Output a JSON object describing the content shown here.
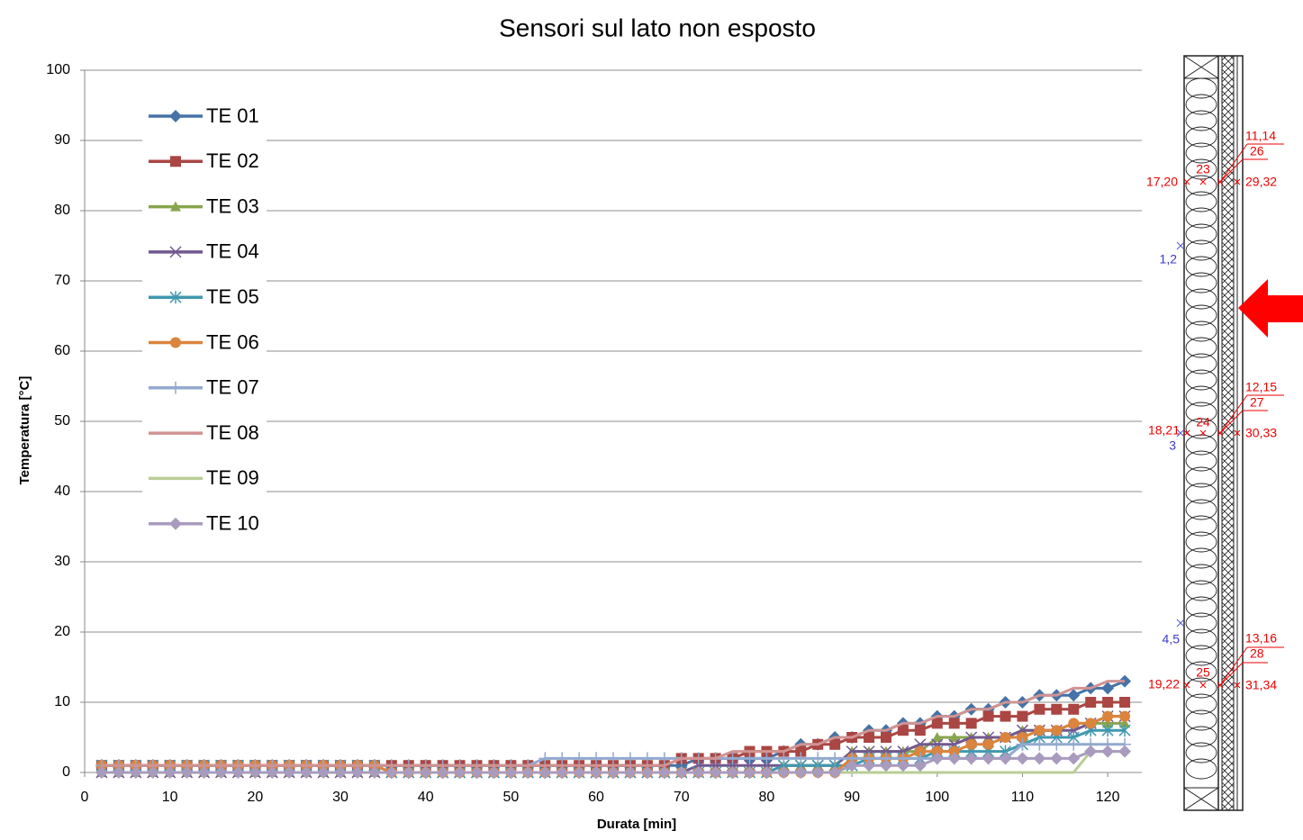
{
  "chart_data": {
    "type": "line",
    "title": "Sensori sul lato non esposto",
    "xlabel": "Durata  [min]",
    "ylabel": "Temperatura  [°C]",
    "xlim": [
      0,
      124
    ],
    "ylim": [
      0,
      100
    ],
    "xticks": [
      0,
      10,
      20,
      30,
      40,
      50,
      60,
      70,
      80,
      90,
      100,
      110,
      120
    ],
    "yticks": [
      0,
      10,
      20,
      30,
      40,
      50,
      60,
      70,
      80,
      90,
      100
    ],
    "grid": true,
    "legend": "upper left",
    "x": [
      2,
      4,
      6,
      8,
      10,
      12,
      14,
      16,
      18,
      20,
      22,
      24,
      26,
      28,
      30,
      32,
      34,
      36,
      38,
      40,
      42,
      44,
      46,
      48,
      50,
      52,
      54,
      56,
      58,
      60,
      62,
      64,
      66,
      68,
      70,
      72,
      74,
      76,
      78,
      80,
      82,
      84,
      86,
      88,
      90,
      92,
      94,
      96,
      98,
      100,
      102,
      104,
      106,
      108,
      110,
      112,
      114,
      116,
      118,
      120,
      122
    ],
    "series": [
      {
        "name": "TE 01",
        "color": "#4572a7",
        "marker": "diamond",
        "values": [
          1,
          1,
          1,
          1,
          1,
          1,
          1,
          1,
          1,
          1,
          1,
          1,
          1,
          1,
          1,
          1,
          1,
          1,
          1,
          1,
          1,
          1,
          1,
          1,
          1,
          1,
          1,
          1,
          1,
          1,
          1,
          1,
          1,
          1,
          1,
          2,
          2,
          2,
          2,
          2,
          3,
          4,
          4,
          5,
          5,
          6,
          6,
          7,
          7,
          8,
          8,
          9,
          9,
          10,
          10,
          11,
          11,
          11,
          12,
          12,
          13
        ]
      },
      {
        "name": "TE 02",
        "color": "#aa4643",
        "marker": "square",
        "values": [
          1,
          1,
          1,
          1,
          1,
          1,
          1,
          1,
          1,
          1,
          1,
          1,
          1,
          1,
          1,
          1,
          1,
          1,
          1,
          1,
          1,
          1,
          1,
          1,
          1,
          1,
          1,
          1,
          1,
          1,
          1,
          1,
          1,
          1,
          2,
          2,
          2,
          2,
          3,
          3,
          3,
          3,
          4,
          4,
          5,
          5,
          5,
          6,
          6,
          7,
          7,
          7,
          8,
          8,
          8,
          9,
          9,
          9,
          10,
          10,
          10
        ]
      },
      {
        "name": "TE 03",
        "color": "#89a54e",
        "marker": "triangle",
        "values": [
          0,
          0,
          0,
          0,
          0,
          0,
          0,
          0,
          0,
          0,
          0,
          0,
          0,
          0,
          0,
          0,
          0,
          0,
          0,
          0,
          0,
          0,
          0,
          0,
          0,
          0,
          0,
          0,
          0,
          0,
          0,
          0,
          0,
          0,
          0,
          0,
          0,
          0,
          0,
          0,
          1,
          1,
          1,
          1,
          3,
          3,
          3,
          3,
          3,
          5,
          5,
          5,
          5,
          5,
          6,
          6,
          6,
          7,
          7,
          7,
          7
        ]
      },
      {
        "name": "TE 04",
        "color": "#71588f",
        "marker": "x",
        "values": [
          0,
          0,
          0,
          0,
          0,
          0,
          0,
          0,
          0,
          0,
          0,
          0,
          0,
          0,
          0,
          0,
          0,
          0,
          0,
          0,
          0,
          0,
          0,
          0,
          0,
          0,
          0,
          0,
          0,
          0,
          0,
          0,
          0,
          0,
          0,
          1,
          1,
          1,
          1,
          1,
          1,
          1,
          1,
          1,
          3,
          3,
          3,
          3,
          4,
          4,
          4,
          5,
          5,
          5,
          6,
          6,
          6,
          6,
          7,
          8,
          8
        ]
      },
      {
        "name": "TE 05",
        "color": "#4198af",
        "marker": "star",
        "values": [
          1,
          1,
          1,
          1,
          1,
          1,
          1,
          1,
          1,
          1,
          1,
          1,
          1,
          1,
          1,
          1,
          1,
          0,
          0,
          0,
          0,
          0,
          0,
          0,
          0,
          0,
          0,
          0,
          0,
          0,
          0,
          0,
          0,
          0,
          0,
          0,
          0,
          0,
          0,
          0,
          1,
          1,
          1,
          1,
          1,
          2,
          2,
          2,
          2,
          3,
          3,
          3,
          3,
          3,
          4,
          5,
          5,
          5,
          6,
          6,
          6
        ]
      },
      {
        "name": "TE 06",
        "color": "#db843d",
        "marker": "circle",
        "values": [
          1,
          1,
          1,
          1,
          1,
          1,
          1,
          1,
          1,
          1,
          1,
          1,
          1,
          1,
          1,
          1,
          1,
          0,
          0,
          0,
          0,
          0,
          0,
          0,
          0,
          0,
          0,
          0,
          0,
          0,
          0,
          0,
          0,
          0,
          0,
          0,
          0,
          0,
          0,
          0,
          0,
          0,
          0,
          0,
          2,
          2,
          2,
          2,
          3,
          3,
          3,
          4,
          4,
          5,
          5,
          6,
          6,
          7,
          7,
          8,
          8
        ]
      },
      {
        "name": "TE 07",
        "color": "#93a9cf",
        "marker": "plus",
        "values": [
          1,
          1,
          1,
          1,
          1,
          1,
          1,
          1,
          1,
          1,
          1,
          1,
          1,
          1,
          1,
          1,
          1,
          1,
          1,
          1,
          1,
          1,
          1,
          1,
          1,
          1,
          2,
          2,
          2,
          2,
          2,
          2,
          2,
          2,
          2,
          2,
          2,
          2,
          2,
          2,
          2,
          2,
          2,
          2,
          2,
          2,
          2,
          2,
          2,
          2,
          2,
          2,
          2,
          2,
          4,
          4,
          4,
          4,
          4,
          4,
          4
        ]
      },
      {
        "name": "TE 08",
        "color": "#d19392",
        "marker": "none",
        "values": [
          1,
          1,
          1,
          1,
          1,
          1,
          1,
          1,
          1,
          1,
          1,
          1,
          1,
          1,
          1,
          1,
          1,
          1,
          1,
          1,
          1,
          1,
          1,
          1,
          1,
          1,
          1,
          1,
          1,
          1,
          1,
          1,
          1,
          1,
          2,
          2,
          2,
          3,
          3,
          3,
          3,
          4,
          4,
          5,
          5,
          6,
          6,
          7,
          7,
          8,
          8,
          9,
          9,
          10,
          10,
          11,
          11,
          12,
          12,
          13,
          13
        ]
      },
      {
        "name": "TE 09",
        "color": "#b9cd96",
        "marker": "none",
        "values": [
          0,
          0,
          0,
          0,
          0,
          0,
          0,
          0,
          0,
          0,
          0,
          0,
          0,
          0,
          0,
          0,
          0,
          0,
          0,
          0,
          0,
          0,
          0,
          0,
          0,
          0,
          0,
          0,
          0,
          0,
          0,
          0,
          0,
          0,
          0,
          0,
          0,
          0,
          0,
          0,
          0,
          0,
          0,
          0,
          0,
          0,
          0,
          0,
          0,
          0,
          0,
          0,
          0,
          0,
          0,
          0,
          0,
          0,
          3,
          3,
          3
        ]
      },
      {
        "name": "TE 10",
        "color": "#a99bbd",
        "marker": "diamond",
        "values": [
          0,
          0,
          0,
          0,
          0,
          0,
          0,
          0,
          0,
          0,
          0,
          0,
          0,
          0,
          0,
          0,
          0,
          0,
          0,
          0,
          0,
          0,
          0,
          0,
          0,
          0,
          0,
          0,
          0,
          0,
          0,
          0,
          0,
          0,
          0,
          0,
          0,
          0,
          0,
          0,
          0,
          0,
          0,
          0,
          1,
          1,
          1,
          1,
          1,
          2,
          2,
          2,
          2,
          2,
          2,
          2,
          2,
          2,
          3,
          3,
          3
        ]
      }
    ]
  },
  "diagram": {
    "labels": [
      "11,14",
      "26",
      "23",
      "17,20",
      "29,32",
      "1,2",
      "12,15",
      "27",
      "24",
      "18,21",
      "30,33",
      "3",
      "4,5",
      "13,16",
      "28",
      "25",
      "19,22",
      "31,34"
    ]
  }
}
